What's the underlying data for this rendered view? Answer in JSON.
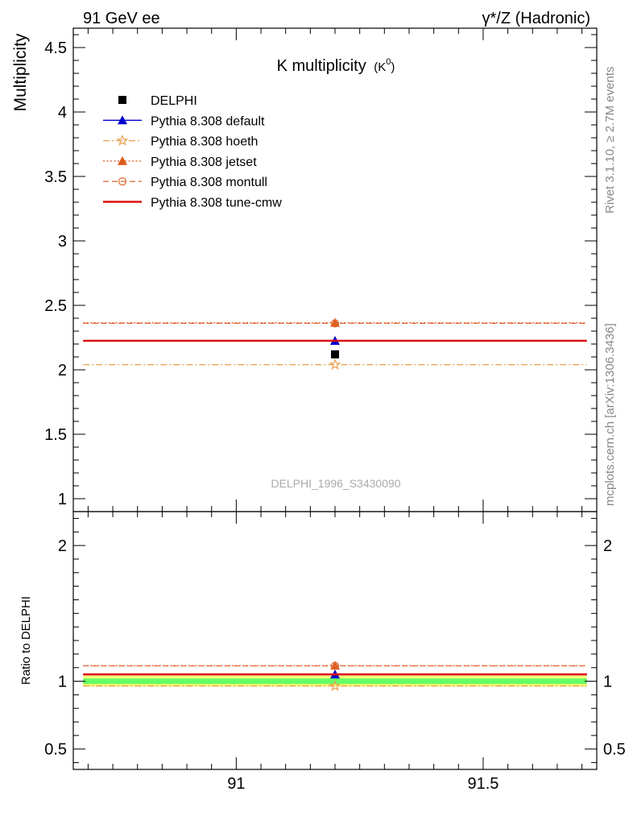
{
  "header": {
    "left": "91 GeV ee",
    "right": "γ*/Z (Hadronic)"
  },
  "side_labels": {
    "rivet": "Rivet 3.1.10, ≥ 2.7M events",
    "mcplots": "mcplots.cern.ch [arXiv:1306.3436]"
  },
  "chart_data": [
    {
      "type": "line",
      "panel": "main",
      "title": "K multiplicity",
      "title_sub": "(K",
      "title_sup": "0",
      "title_close": ")",
      "ylabel": "Multiplicity",
      "xlim": [
        90.67,
        91.73
      ],
      "ylim": [
        0.9,
        4.65
      ],
      "yticks": [
        1,
        1.5,
        2,
        2.5,
        3,
        3.5,
        4,
        4.5
      ],
      "ytick_labels": [
        "1",
        "1.5",
        "2",
        "2.5",
        "3",
        "3.5",
        "4",
        "4.5"
      ],
      "grid": false,
      "legend_position": "top-left",
      "watermark": "DELPHI_1996_S3430090",
      "x_range": [
        90.69,
        91.71
      ],
      "point_x": 91.2,
      "series": [
        {
          "name": "DELPHI",
          "value": 2.12,
          "color": "#000000",
          "marker": "square",
          "style": "point"
        },
        {
          "name": "Pythia 8.308 default",
          "value": 2.225,
          "color": "#0000cc",
          "marker": "triangle",
          "style": "solid"
        },
        {
          "name": "Pythia 8.308 hoeth",
          "value": 2.04,
          "color": "#e8a050",
          "marker": "star-open",
          "style": "dashdot"
        },
        {
          "name": "Pythia 8.308 jetset",
          "value": 2.365,
          "color": "#e05a1a",
          "marker": "triangle",
          "style": "dotted"
        },
        {
          "name": "Pythia 8.308 montull",
          "value": 2.36,
          "color": "#e07040",
          "marker": "circle-open",
          "style": "dashed"
        },
        {
          "name": "Pythia 8.308 tune-cmw",
          "value": 2.225,
          "color": "#dd1111",
          "marker": "none",
          "style": "thick"
        }
      ]
    },
    {
      "type": "line",
      "panel": "ratio",
      "ylabel": "Ratio to DELPHI",
      "xlim": [
        90.67,
        91.73
      ],
      "ylim": [
        0.35,
        2.25
      ],
      "yticks": [
        0.5,
        1,
        2
      ],
      "ytick_labels": [
        "0.5",
        "1",
        "2"
      ],
      "xticks": [
        91,
        91.5
      ],
      "xtick_labels": [
        "91",
        "91.5"
      ],
      "band_inner": [
        0.98,
        1.02
      ],
      "band_outer": [
        0.96,
        1.04
      ],
      "band_inner_color": "#66ff66",
      "band_outer_color": "#f0ff70",
      "series": [
        {
          "name": "Pythia 8.308 default",
          "value": 1.05
        },
        {
          "name": "Pythia 8.308 hoeth",
          "value": 0.965
        },
        {
          "name": "Pythia 8.308 jetset",
          "value": 1.115
        },
        {
          "name": "Pythia 8.308 montull",
          "value": 1.113
        },
        {
          "name": "Pythia 8.308 tune-cmw",
          "value": 1.05
        }
      ]
    }
  ]
}
